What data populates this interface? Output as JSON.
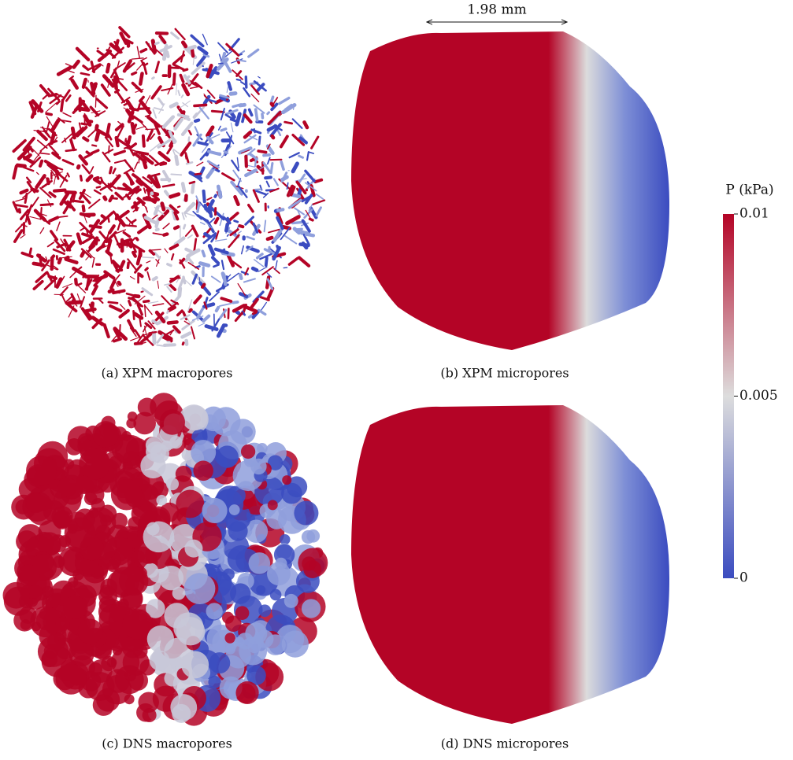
{
  "scale_bar": "1.98 mm",
  "panels": [
    {
      "caption": "(a) XPM macropores"
    },
    {
      "caption": "(b) XPM micropores"
    },
    {
      "caption": "(c) DNS macropores"
    },
    {
      "caption": "(d) DNS micropores"
    }
  ],
  "colorbar": {
    "title": "P (kPa)",
    "lim": [
      0,
      0.01
    ],
    "ticks": [
      0,
      0.005,
      0.01
    ],
    "colors": [
      "#3b4cc0",
      "#dddddd",
      "#b40426"
    ]
  }
}
